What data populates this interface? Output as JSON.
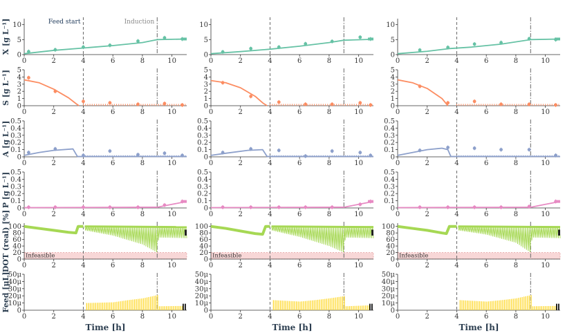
{
  "chart_data": {
    "type": "line",
    "layout": "6 rows x 3 columns of subplots sharing the time axis",
    "x_label": "Time [h]",
    "xlim": [
      0,
      11
    ],
    "x_ticks": [
      0,
      2,
      4,
      6,
      8,
      10
    ],
    "feed_start_time": 4,
    "induction_time": 9,
    "annotations": {
      "feed_start": "Feed start",
      "induction": "Induction",
      "infeasible": "Infeasible"
    },
    "infeasible_dot_below": 20,
    "colors": {
      "X": "#66c2a5",
      "S": "#fc8d62",
      "A": "#8da0cb",
      "P": "#e78ac3",
      "DOT": "#a6d854",
      "Feed": "#ffd92f",
      "feed_start_line": "#666666",
      "induction_line": "#666666",
      "infeasible_fill": "#f8d7d7"
    },
    "rows": [
      {
        "key": "X",
        "ylabel": "X [g L⁻¹]",
        "ylim": [
          0,
          12
        ],
        "ticks": [
          "0",
          "5",
          "10"
        ],
        "tick_values": [
          0,
          5,
          10
        ]
      },
      {
        "key": "S",
        "ylabel": "S [g L⁻¹]",
        "ylim": [
          0,
          5
        ],
        "ticks": [
          "0",
          "1",
          "2",
          "3",
          "4",
          "5"
        ],
        "tick_values": [
          0,
          1,
          2,
          3,
          4,
          5
        ]
      },
      {
        "key": "A",
        "ylabel": "A [g L⁻¹]",
        "ylim": [
          0,
          0.5
        ],
        "ticks": [
          "0",
          "0.1",
          "0.2",
          "0.3",
          "0.4",
          "0.5"
        ],
        "tick_values": [
          0,
          0.1,
          0.2,
          0.3,
          0.4,
          0.5
        ]
      },
      {
        "key": "P",
        "ylabel": "P [g L⁻¹]",
        "ylim": [
          0,
          0.5
        ],
        "ticks": [
          "0",
          "0.1",
          "0.2",
          "0.3",
          "0.4",
          "0.5"
        ],
        "tick_values": [
          0,
          0.1,
          0.2,
          0.3,
          0.4,
          0.5
        ]
      },
      {
        "key": "DOT",
        "ylabel": "DOT (real) [%]",
        "ylim": [
          0,
          110
        ],
        "ticks": [
          "0",
          "20",
          "40",
          "60",
          "80",
          "100"
        ],
        "tick_values": [
          0,
          20,
          40,
          60,
          80,
          100
        ]
      },
      {
        "key": "Feed",
        "ylabel": "Feed [μL]",
        "ylim": [
          0,
          50
        ],
        "ticks": [
          "0",
          "10μ",
          "20μ",
          "30μ",
          "40μ",
          "50μ"
        ],
        "tick_values": [
          0,
          10,
          20,
          30,
          40,
          50
        ]
      }
    ],
    "columns": [
      {
        "X_model": [
          [
            0,
            0.3
          ],
          [
            2,
            1.4
          ],
          [
            4,
            2.2
          ],
          [
            6,
            3.0
          ],
          [
            8,
            4.0
          ],
          [
            9,
            5.0
          ],
          [
            11,
            5.2
          ]
        ],
        "X_points": [
          [
            0.3,
            1.0
          ],
          [
            2.1,
            1.6
          ],
          [
            4.0,
            2.5
          ],
          [
            5.8,
            3.1
          ],
          [
            7.7,
            4.5
          ],
          [
            9.5,
            5.6
          ],
          [
            10.7,
            5.2
          ]
        ],
        "S_model": [
          [
            0,
            3.6
          ],
          [
            1,
            3.2
          ],
          [
            2,
            2.3
          ],
          [
            3,
            1.1
          ],
          [
            3.5,
            0.3
          ],
          [
            3.7,
            0
          ]
        ],
        "S_points": [
          [
            0.3,
            3.9
          ],
          [
            2.1,
            2.0
          ],
          [
            4.0,
            0.6
          ],
          [
            5.8,
            0.4
          ],
          [
            7.7,
            0.2
          ],
          [
            9.5,
            0.3
          ],
          [
            10.7,
            0.1
          ]
        ],
        "A_model": [
          [
            0,
            0.02
          ],
          [
            1,
            0.06
          ],
          [
            2,
            0.09
          ],
          [
            3.3,
            0.11
          ],
          [
            3.6,
            0.005
          ],
          [
            11,
            0.005
          ]
        ],
        "A_points": [
          [
            0.3,
            0.06
          ],
          [
            2.1,
            0.11
          ],
          [
            4.0,
            0.02
          ],
          [
            5.8,
            0.08
          ],
          [
            7.7,
            0.03
          ],
          [
            9.5,
            0.05
          ],
          [
            10.7,
            0.02
          ]
        ],
        "P_model": [
          [
            0,
            0.005
          ],
          [
            9,
            0.01
          ],
          [
            10,
            0.05
          ],
          [
            11,
            0.09
          ]
        ],
        "P_points": [
          [
            0.3,
            0.01
          ],
          [
            2.1,
            0.01
          ],
          [
            4.0,
            0.01
          ],
          [
            5.8,
            0.01
          ],
          [
            7.7,
            0.01
          ],
          [
            9.5,
            0.04
          ],
          [
            10.7,
            0.09
          ]
        ],
        "DOT_model": [
          [
            0,
            100
          ],
          [
            1,
            94
          ],
          [
            2,
            88
          ],
          [
            3,
            82
          ],
          [
            3.5,
            80
          ],
          [
            3.65,
            100
          ],
          [
            4.0,
            100
          ],
          [
            4.1,
            90
          ],
          [
            9,
            20
          ],
          [
            9.05,
            100
          ],
          [
            11,
            98
          ]
        ],
        "DOT_oscillation_low": [
          [
            4.1,
            88
          ],
          [
            6,
            72
          ],
          [
            8,
            45
          ],
          [
            9,
            20
          ],
          [
            9.1,
            66
          ],
          [
            11,
            64
          ]
        ],
        "Feed_bars": [
          [
            4.2,
            10
          ],
          [
            6,
            11
          ],
          [
            7,
            14
          ],
          [
            8,
            16.5
          ],
          [
            9,
            21
          ],
          [
            9.1,
            5.5
          ],
          [
            11,
            6
          ]
        ]
      },
      {
        "X_model": [
          [
            0,
            0.3
          ],
          [
            2,
            1.0
          ],
          [
            4,
            1.8
          ],
          [
            6,
            2.8
          ],
          [
            8,
            4.0
          ],
          [
            9,
            4.8
          ],
          [
            11,
            5.1
          ]
        ],
        "X_points": [
          [
            0.8,
            0.9
          ],
          [
            2.7,
            2.0
          ],
          [
            4.6,
            2.5
          ],
          [
            6.4,
            3.6
          ],
          [
            8.2,
            4.4
          ],
          [
            10.1,
            5.8
          ],
          [
            10.8,
            5.2
          ]
        ],
        "S_model": [
          [
            0,
            3.5
          ],
          [
            1,
            3.2
          ],
          [
            2,
            2.5
          ],
          [
            3,
            1.3
          ],
          [
            3.5,
            0.4
          ],
          [
            3.8,
            0
          ]
        ],
        "S_points": [
          [
            0.8,
            3.2
          ],
          [
            2.7,
            1.3
          ],
          [
            4.6,
            0.5
          ],
          [
            6.4,
            0.2
          ],
          [
            8.2,
            0.2
          ],
          [
            10.1,
            0.4
          ],
          [
            10.8,
            0.1
          ]
        ],
        "A_model": [
          [
            0,
            0.02
          ],
          [
            1,
            0.05
          ],
          [
            2.5,
            0.09
          ],
          [
            3.5,
            0.1
          ],
          [
            3.8,
            0.005
          ],
          [
            11,
            0.005
          ]
        ],
        "A_points": [
          [
            0.8,
            0.06
          ],
          [
            2.7,
            0.11
          ],
          [
            4.6,
            0.09
          ],
          [
            6.4,
            0.01
          ],
          [
            8.2,
            0.08
          ],
          [
            10.1,
            0.06
          ],
          [
            10.8,
            0.02
          ]
        ],
        "P_model": [
          [
            0,
            0.005
          ],
          [
            9,
            0.01
          ],
          [
            10,
            0.05
          ],
          [
            11,
            0.09
          ]
        ],
        "P_points": [
          [
            0.8,
            0.01
          ],
          [
            2.7,
            0.01
          ],
          [
            4.6,
            0.01
          ],
          [
            6.4,
            0.01
          ],
          [
            8.2,
            0.01
          ],
          [
            10.1,
            0.05
          ],
          [
            10.8,
            0.09
          ]
        ],
        "DOT_model": [
          [
            0,
            100
          ],
          [
            1,
            94
          ],
          [
            2,
            86
          ],
          [
            3,
            78
          ],
          [
            3.5,
            76
          ],
          [
            3.7,
            100
          ],
          [
            4.0,
            100
          ],
          [
            4.1,
            90
          ],
          [
            9,
            20
          ],
          [
            9.05,
            100
          ],
          [
            11,
            98
          ]
        ],
        "DOT_oscillation_low": [
          [
            4.1,
            88
          ],
          [
            6,
            68
          ],
          [
            8,
            40
          ],
          [
            9,
            20
          ],
          [
            9.1,
            66
          ],
          [
            11,
            64
          ]
        ],
        "Feed_bars": [
          [
            4.2,
            14
          ],
          [
            6,
            12
          ],
          [
            7,
            14
          ],
          [
            8,
            16.5
          ],
          [
            9,
            19.5
          ],
          [
            9.1,
            5.5
          ],
          [
            11,
            7
          ]
        ]
      },
      {
        "X_model": [
          [
            0,
            0.3
          ],
          [
            2,
            1.1
          ],
          [
            3.5,
            2.0
          ],
          [
            5,
            2.5
          ],
          [
            7,
            3.5
          ],
          [
            9,
            5.0
          ],
          [
            11,
            5.2
          ]
        ],
        "X_points": [
          [
            1.5,
            1.5
          ],
          [
            3.4,
            2.4
          ],
          [
            5.2,
            3.5
          ],
          [
            7.0,
            4.0
          ],
          [
            8.9,
            5.3
          ],
          [
            10.7,
            5.0
          ]
        ],
        "S_model": [
          [
            0,
            3.6
          ],
          [
            1,
            3.2
          ],
          [
            2,
            2.4
          ],
          [
            3,
            1.0
          ],
          [
            3.4,
            0
          ]
        ],
        "S_points": [
          [
            1.5,
            2.7
          ],
          [
            3.4,
            0.4
          ],
          [
            5.2,
            0.6
          ],
          [
            7.0,
            0.2
          ],
          [
            8.9,
            0.2
          ],
          [
            10.7,
            0.1
          ]
        ],
        "A_model": [
          [
            0,
            0.02
          ],
          [
            1,
            0.06
          ],
          [
            2,
            0.1
          ],
          [
            3,
            0.12
          ],
          [
            3.4,
            0.1
          ],
          [
            3.6,
            0.005
          ],
          [
            11,
            0.005
          ]
        ],
        "A_points": [
          [
            1.5,
            0.09
          ],
          [
            3.4,
            0.13
          ],
          [
            5.2,
            0.12
          ],
          [
            7.0,
            0.1
          ],
          [
            8.9,
            0.1
          ],
          [
            10.7,
            0.02
          ]
        ],
        "P_model": [
          [
            0,
            0.005
          ],
          [
            9,
            0.01
          ],
          [
            10,
            0.05
          ],
          [
            11,
            0.09
          ]
        ],
        "P_points": [
          [
            1.5,
            0.01
          ],
          [
            3.4,
            0.01
          ],
          [
            5.2,
            0.01
          ],
          [
            7.0,
            0.01
          ],
          [
            8.9,
            0.02
          ],
          [
            10.7,
            0.09
          ]
        ],
        "DOT_model": [
          [
            0,
            100
          ],
          [
            1,
            94
          ],
          [
            2,
            88
          ],
          [
            3,
            80
          ],
          [
            3.3,
            78
          ],
          [
            3.5,
            100
          ],
          [
            4.0,
            100
          ],
          [
            4.1,
            90
          ],
          [
            9,
            20
          ],
          [
            9.05,
            100
          ],
          [
            11,
            98
          ]
        ],
        "DOT_oscillation_low": [
          [
            4.1,
            88
          ],
          [
            6,
            75
          ],
          [
            8,
            50
          ],
          [
            9,
            20
          ],
          [
            9.1,
            66
          ],
          [
            11,
            64
          ]
        ],
        "Feed_bars": [
          [
            4.2,
            14
          ],
          [
            6,
            12
          ],
          [
            7,
            14
          ],
          [
            8,
            16.5
          ],
          [
            9,
            21
          ],
          [
            9.1,
            5.5
          ],
          [
            11,
            6
          ]
        ]
      }
    ]
  }
}
